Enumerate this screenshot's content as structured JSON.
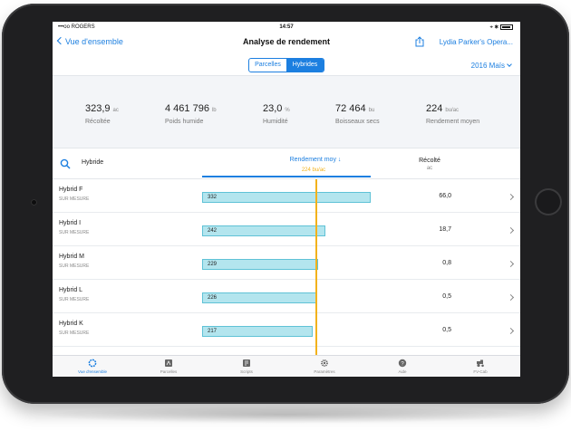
{
  "status_bar": {
    "carrier": "•••oo ROGERS",
    "time": "14:57",
    "battery": "⌖ ✱"
  },
  "nav": {
    "back_label": "Vue d'ensemble",
    "title": "Analyse de rendement",
    "operator": "Lydia Parker's Opera..."
  },
  "segments": {
    "fields": "Parcelles",
    "hybrids": "Hybrides",
    "selected": "hybrids"
  },
  "season": "2016 Maïs",
  "stats": [
    {
      "value": "323,9",
      "unit": "ac",
      "label": "Récoltée"
    },
    {
      "value": "4 461 796",
      "unit": "lb",
      "label": "Poids humide"
    },
    {
      "value": "23,0",
      "unit": "%",
      "label": "Humidité"
    },
    {
      "value": "72 464",
      "unit": "bu",
      "label": "Boisseaux secs"
    },
    {
      "value": "224",
      "unit": "bu/ac",
      "label": "Rendement moyen"
    }
  ],
  "table_header": {
    "hybrid": "Hybride",
    "yield": "Rendement moy ↓",
    "avg_marker": "224 bu/ac",
    "harvested": "Récolté",
    "harvested_unit": "ac"
  },
  "chart_data": {
    "type": "bar",
    "categories": [
      "Hybrid F",
      "Hybrid I",
      "Hybrid M",
      "Hybrid L",
      "Hybrid K"
    ],
    "values": [
      332,
      242,
      229,
      226,
      217
    ],
    "average": 224,
    "xlim": [
      0,
      332
    ]
  },
  "rows": [
    {
      "name": "Hybrid F",
      "sub": "SUR MESURE",
      "yield": "332",
      "harvested": "66,0"
    },
    {
      "name": "Hybrid I",
      "sub": "SUR MESURE",
      "yield": "242",
      "harvested": "18,7"
    },
    {
      "name": "Hybrid M",
      "sub": "SUR MESURE",
      "yield": "229",
      "harvested": "0,8"
    },
    {
      "name": "Hybrid L",
      "sub": "SUR MESURE",
      "yield": "226",
      "harvested": "0,5"
    },
    {
      "name": "Hybrid K",
      "sub": "SUR MESURE",
      "yield": "217",
      "harvested": "0,5"
    }
  ],
  "tabs": [
    {
      "label": "Vue d'ensemble",
      "icon": "overview-ring-icon",
      "active": true
    },
    {
      "label": "Parcelles",
      "icon": "fields-icon",
      "active": false
    },
    {
      "label": "Scripts",
      "icon": "scripts-icon",
      "active": false
    },
    {
      "label": "Paramètres",
      "icon": "gear-icon",
      "active": false
    },
    {
      "label": "Aide",
      "icon": "help-icon",
      "active": false
    },
    {
      "label": "FV-Cab",
      "icon": "tractor-icon",
      "active": false
    }
  ],
  "colors": {
    "accent": "#1c7fe0",
    "bar_fill": "#b3e5ee",
    "bar_stroke": "#5fc2d6",
    "average_line": "#f2b21b"
  }
}
